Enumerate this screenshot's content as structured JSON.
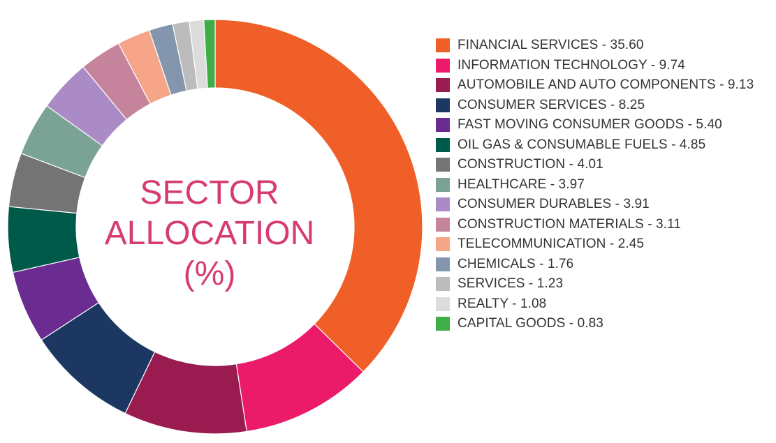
{
  "chart_data": {
    "type": "pie",
    "variant": "donut",
    "title_lines": [
      "SECTOR",
      "ALLOCATION",
      "(%)"
    ],
    "title_color": "#d63b74",
    "legend_position": "right",
    "slices": [
      {
        "label": "FINANCIAL SERVICES",
        "value": 35.6,
        "value_text": "35.60",
        "color": "#f05f28"
      },
      {
        "label": "INFORMATION TECHNOLOGY",
        "value": 9.74,
        "value_text": "9.74",
        "color": "#ec1b6a"
      },
      {
        "label": "AUTOMOBILE AND AUTO COMPONENTS",
        "value": 9.13,
        "value_text": "9.13",
        "color": "#9a1b4f"
      },
      {
        "label": "CONSUMER SERVICES",
        "value": 8.25,
        "value_text": "8.25",
        "color": "#1c3862"
      },
      {
        "label": "FAST MOVING CONSUMER GOODS",
        "value": 5.4,
        "value_text": "5.40",
        "color": "#6b2c91"
      },
      {
        "label": "OIL GAS & CONSUMABLE FUELS",
        "value": 4.85,
        "value_text": "4.85",
        "color": "#005a4a"
      },
      {
        "label": "CONSTRUCTION",
        "value": 4.01,
        "value_text": "4.01",
        "color": "#747474"
      },
      {
        "label": "HEALTHCARE",
        "value": 3.97,
        "value_text": "3.97",
        "color": "#7aa396"
      },
      {
        "label": "CONSUMER DURABLES",
        "value": 3.91,
        "value_text": "3.91",
        "color": "#ab8bc5"
      },
      {
        "label": "CONSTRUCTION MATERIALS",
        "value": 3.11,
        "value_text": "3.11",
        "color": "#c5849b"
      },
      {
        "label": "TELECOMMUNICATION",
        "value": 2.45,
        "value_text": "2.45",
        "color": "#f6a588"
      },
      {
        "label": "CHEMICALS",
        "value": 1.76,
        "value_text": "1.76",
        "color": "#8396ad"
      },
      {
        "label": "SERVICES",
        "value": 1.23,
        "value_text": "1.23",
        "color": "#bcbcbc"
      },
      {
        "label": "REALTY",
        "value": 1.08,
        "value_text": "1.08",
        "color": "#dcdcdc"
      },
      {
        "label": "CAPITAL GOODS",
        "value": 0.83,
        "value_text": "0.83",
        "color": "#3fae49"
      }
    ]
  }
}
